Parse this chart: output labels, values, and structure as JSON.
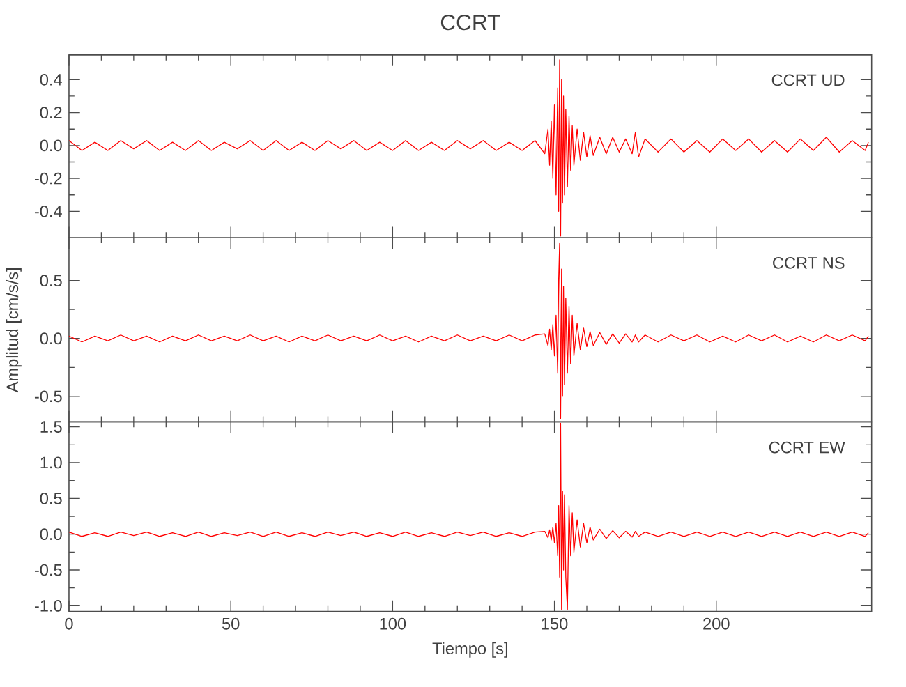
{
  "chart_data": [
    {
      "type": "line",
      "title": "CCRT",
      "annotations": [
        "CCRT   UD"
      ],
      "color": "#ff0000",
      "tick_labels": "y",
      "xlim": [
        0,
        248
      ],
      "xticks": [
        0,
        50,
        100,
        150,
        200
      ],
      "ylim": [
        -0.56,
        0.55
      ],
      "yticks": [
        -0.4,
        -0.2,
        {
          "value": 0,
          "label": "0.0"
        },
        0.2,
        0.4
      ],
      "x": [
        0,
        4,
        8,
        12,
        16,
        20,
        24,
        28,
        32,
        36,
        40,
        44,
        48,
        52,
        56,
        60,
        64,
        68,
        72,
        76,
        80,
        84,
        88,
        92,
        96,
        100,
        104,
        108,
        112,
        116,
        120,
        124,
        128,
        132,
        136,
        140,
        144,
        147,
        148,
        148.5,
        149,
        149.5,
        150,
        150.5,
        151,
        151.3,
        151.6,
        151.9,
        152.2,
        152.5,
        152.8,
        153.1,
        153.5,
        154,
        154.5,
        155,
        155.5,
        156,
        157,
        158,
        159,
        160,
        161,
        162,
        164,
        166,
        168,
        170,
        172,
        174,
        175,
        176,
        178,
        182,
        186,
        190,
        194,
        198,
        202,
        206,
        210,
        214,
        218,
        222,
        226,
        230,
        234,
        238,
        242,
        246,
        247
      ],
      "values": [
        0.03,
        -0.03,
        0.02,
        -0.03,
        0.03,
        -0.02,
        0.03,
        -0.03,
        0.02,
        -0.03,
        0.03,
        -0.03,
        0.02,
        -0.02,
        0.03,
        -0.03,
        0.03,
        -0.03,
        0.02,
        -0.03,
        0.03,
        -0.02,
        0.03,
        -0.03,
        0.02,
        -0.03,
        0.03,
        -0.03,
        0.02,
        -0.03,
        0.03,
        -0.02,
        0.03,
        -0.03,
        0.02,
        -0.03,
        0.03,
        -0.05,
        0.1,
        -0.12,
        0.15,
        -0.2,
        0.25,
        -0.3,
        0.35,
        -0.4,
        0.52,
        -0.55,
        0.4,
        -0.35,
        0.3,
        -0.3,
        0.22,
        -0.25,
        0.18,
        -0.15,
        0.12,
        -0.12,
        0.1,
        -0.09,
        0.08,
        -0.07,
        0.06,
        -0.06,
        0.05,
        -0.05,
        0.05,
        -0.04,
        0.04,
        -0.05,
        0.08,
        -0.07,
        0.04,
        -0.04,
        0.04,
        -0.04,
        0.03,
        -0.04,
        0.04,
        -0.03,
        0.04,
        -0.04,
        0.03,
        -0.04,
        0.04,
        -0.03,
        0.05,
        -0.04,
        0.03,
        -0.03,
        0.02
      ]
    },
    {
      "type": "line",
      "ylabel": "Amplitud [cm/s/s]",
      "annotations": [
        "CCRT   NS"
      ],
      "color": "#ff0000",
      "tick_labels": "y",
      "xlim": [
        0,
        248
      ],
      "xticks": [
        0,
        50,
        100,
        150,
        200
      ],
      "ylim": [
        -0.72,
        0.87
      ],
      "yticks": [
        -0.5,
        {
          "value": 0,
          "label": "0.0"
        },
        0.5
      ],
      "x": [
        0,
        4,
        8,
        12,
        16,
        20,
        24,
        28,
        32,
        36,
        40,
        44,
        48,
        52,
        56,
        60,
        64,
        68,
        72,
        76,
        80,
        84,
        88,
        92,
        96,
        100,
        104,
        108,
        112,
        116,
        120,
        124,
        128,
        132,
        136,
        140,
        144,
        147,
        148,
        148.5,
        149,
        149.5,
        150,
        150.5,
        151,
        151.3,
        151.6,
        151.9,
        152.2,
        152.5,
        152.8,
        153.1,
        153.5,
        154,
        154.5,
        155,
        155.5,
        156,
        157,
        158,
        159,
        160,
        161,
        162,
        164,
        166,
        168,
        170,
        172,
        174,
        175,
        176,
        178,
        182,
        186,
        190,
        194,
        198,
        202,
        206,
        210,
        214,
        218,
        222,
        226,
        230,
        234,
        238,
        242,
        246,
        247
      ],
      "values": [
        0.02,
        -0.03,
        0.02,
        -0.02,
        0.03,
        -0.02,
        0.02,
        -0.03,
        0.02,
        -0.02,
        0.03,
        -0.02,
        0.02,
        -0.02,
        0.03,
        -0.02,
        0.02,
        -0.03,
        0.02,
        -0.02,
        0.03,
        -0.02,
        0.02,
        -0.02,
        0.03,
        -0.02,
        0.02,
        -0.03,
        0.02,
        -0.02,
        0.03,
        -0.02,
        0.02,
        -0.02,
        0.03,
        -0.02,
        0.03,
        0.04,
        -0.06,
        0.08,
        -0.1,
        0.12,
        -0.15,
        0.2,
        -0.3,
        0.5,
        0.82,
        -0.69,
        0.6,
        -0.5,
        0.45,
        -0.4,
        0.35,
        -0.3,
        0.28,
        -0.22,
        0.2,
        -0.15,
        0.13,
        -0.1,
        0.09,
        -0.07,
        0.06,
        -0.06,
        0.05,
        -0.05,
        0.04,
        -0.04,
        0.04,
        -0.03,
        0.03,
        -0.03,
        0.03,
        -0.03,
        0.03,
        -0.02,
        0.03,
        -0.03,
        0.02,
        -0.03,
        0.03,
        -0.02,
        0.03,
        -0.03,
        0.02,
        -0.03,
        0.03,
        -0.02,
        0.03,
        -0.02,
        0.02
      ]
    },
    {
      "type": "line",
      "xlabel": "Tiempo [s]",
      "annotations": [
        "CCRT   EW"
      ],
      "color": "#ff0000",
      "xlim": [
        0,
        248
      ],
      "xticks": [
        0,
        50,
        100,
        150,
        200
      ],
      "ylim": [
        -1.08,
        1.57
      ],
      "yticks": [
        {
          "value": -1,
          "label": "-1.0"
        },
        -0.5,
        {
          "value": 0,
          "label": "0.0"
        },
        0.5,
        {
          "value": 1,
          "label": "1.0"
        },
        1.5
      ],
      "x": [
        0,
        4,
        8,
        12,
        16,
        20,
        24,
        28,
        32,
        36,
        40,
        44,
        48,
        52,
        56,
        60,
        64,
        68,
        72,
        76,
        80,
        84,
        88,
        92,
        96,
        100,
        104,
        108,
        112,
        116,
        120,
        124,
        128,
        132,
        136,
        140,
        144,
        147,
        148,
        148.5,
        149,
        149.5,
        150,
        150.5,
        151,
        151.3,
        151.6,
        151.9,
        152.2,
        152.5,
        152.8,
        153.1,
        153.5,
        154,
        154.5,
        155,
        155.5,
        156,
        157,
        158,
        159,
        160,
        161,
        162,
        164,
        166,
        168,
        170,
        172,
        174,
        175,
        176,
        178,
        182,
        186,
        190,
        194,
        198,
        202,
        206,
        210,
        214,
        218,
        222,
        226,
        230,
        234,
        238,
        242,
        246,
        247
      ],
      "values": [
        0.03,
        -0.03,
        0.02,
        -0.03,
        0.03,
        -0.02,
        0.03,
        -0.03,
        0.02,
        -0.03,
        0.03,
        -0.03,
        0.02,
        -0.02,
        0.03,
        -0.03,
        0.03,
        -0.03,
        0.02,
        -0.03,
        0.03,
        -0.02,
        0.03,
        -0.03,
        0.02,
        -0.03,
        0.03,
        -0.03,
        0.02,
        -0.03,
        0.03,
        -0.02,
        0.03,
        -0.03,
        0.02,
        -0.03,
        0.03,
        0.04,
        -0.05,
        0.06,
        -0.08,
        0.1,
        -0.12,
        0.15,
        -0.3,
        0.4,
        -0.6,
        1.55,
        -1.05,
        0.6,
        -0.5,
        0.55,
        -0.6,
        -1.05,
        0.4,
        -0.3,
        0.3,
        -0.25,
        0.2,
        -0.18,
        0.15,
        -0.12,
        0.1,
        -0.08,
        0.07,
        -0.06,
        0.05,
        -0.05,
        0.04,
        -0.04,
        0.04,
        -0.03,
        0.03,
        -0.03,
        0.03,
        -0.03,
        0.03,
        -0.03,
        0.03,
        -0.03,
        0.03,
        -0.03,
        0.03,
        -0.03,
        0.03,
        -0.03,
        0.03,
        -0.03,
        0.03,
        -0.03,
        0.02
      ]
    }
  ]
}
